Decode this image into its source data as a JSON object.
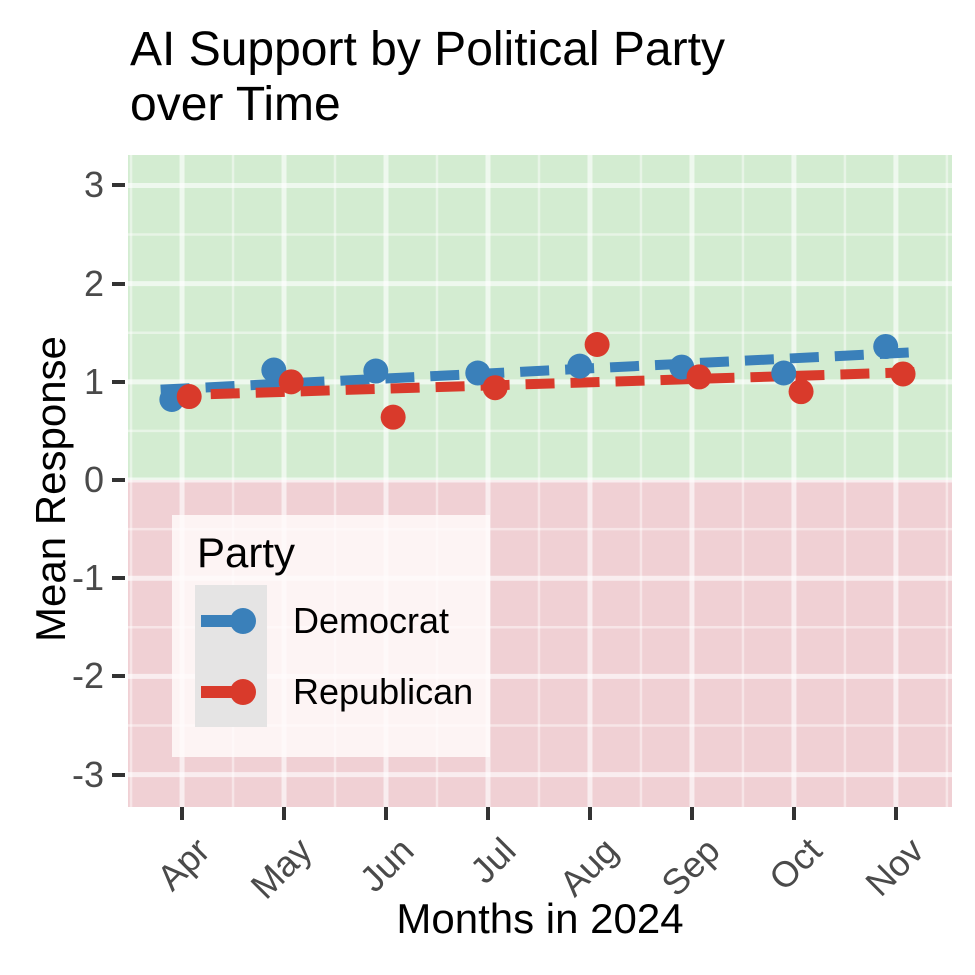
{
  "figure": {
    "title_line1": "AI Support by Political Party",
    "title_line2": "over Time"
  },
  "chart_data": {
    "type": "scatter",
    "title": "AI Support by Political Party over Time",
    "xlabel": "Months in 2024",
    "ylabel": "Mean Response",
    "categories": [
      "Apr",
      "May",
      "Jun",
      "Jul",
      "Aug",
      "Sep",
      "Oct",
      "Nov"
    ],
    "y_ticks": [
      3,
      2,
      1,
      0,
      -1,
      -2,
      -3
    ],
    "ylim": [
      -3.33,
      3.31
    ],
    "xlim_month_index": [
      -0.53,
      7.55
    ],
    "grid": true,
    "background_bands": {
      "above_zero_color": "#d3ecd1",
      "below_zero_color": "#f0d0d4"
    },
    "gridline_color_major": "rgba(255,255,255,0.62)",
    "gridline_color_minor": "rgba(255,255,255,0.45)",
    "legend_title": "Party",
    "legend_position": "inside bottom-left",
    "series": [
      {
        "name": "Democrat",
        "color": "#3a80ba",
        "marker": "circle",
        "dodge_month_offset": -0.1,
        "values": [
          0.82,
          1.12,
          1.11,
          1.09,
          1.16,
          1.15,
          1.09,
          1.36
        ],
        "trend_line": {
          "style": "dashed",
          "x1": -0.21,
          "y1": 0.92,
          "x2": 7.16,
          "y2": 1.3
        }
      },
      {
        "name": "Republican",
        "color": "#d93a2b",
        "marker": "circle",
        "dodge_month_offset": 0.07,
        "values": [
          0.85,
          1.0,
          0.64,
          0.94,
          1.38,
          1.05,
          0.9,
          1.08
        ],
        "trend_line": {
          "style": "dashed",
          "x1": -0.16,
          "y1": 0.86,
          "x2": 7.22,
          "y2": 1.1
        }
      }
    ]
  },
  "legend": {
    "title": "Party",
    "items": [
      {
        "label": "Democrat",
        "color": "#3a80ba"
      },
      {
        "label": "Republican",
        "color": "#d93a2b"
      }
    ]
  }
}
